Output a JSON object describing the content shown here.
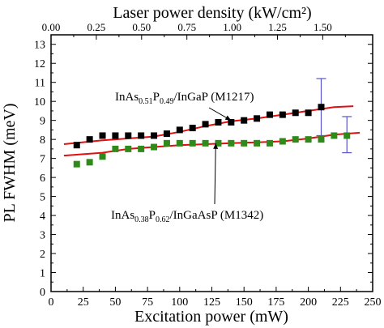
{
  "chart_data": {
    "type": "scatter",
    "xlabel": "Excitation power (mW)",
    "ylabel": "PL FWHM (meV)",
    "top_xlabel": "Laser power density (kW/cm²)",
    "xlim": [
      0,
      250
    ],
    "ylim": [
      0,
      13.5
    ],
    "x_ticks": [
      0,
      25,
      50,
      75,
      100,
      125,
      150,
      175,
      200,
      225,
      250
    ],
    "y_ticks": [
      0,
      1,
      2,
      3,
      4,
      5,
      6,
      7,
      8,
      9,
      10,
      11,
      12,
      13
    ],
    "top_ticks": [
      {
        "label": "0.00",
        "x": 0
      },
      {
        "label": "0.25",
        "x": 35.2
      },
      {
        "label": "0.50",
        "x": 70.4
      },
      {
        "label": "0.75",
        "x": 105.6
      },
      {
        "label": "1.00",
        "x": 140.8
      },
      {
        "label": "1.25",
        "x": 176.0
      },
      {
        "label": "1.50",
        "x": 211.2
      }
    ],
    "series": [
      {
        "name": "InAs0.51P0.49/InGaP (M1217)",
        "color": "#000000",
        "marker": "square",
        "x": [
          20,
          30,
          40,
          50,
          60,
          70,
          80,
          90,
          100,
          110,
          120,
          130,
          140,
          150,
          160,
          170,
          180,
          190,
          200,
          210
        ],
        "y": [
          7.7,
          8.0,
          8.2,
          8.2,
          8.2,
          8.2,
          8.2,
          8.3,
          8.5,
          8.6,
          8.8,
          8.9,
          8.9,
          9.0,
          9.1,
          9.3,
          9.3,
          9.4,
          9.4,
          9.7
        ],
        "errorbar": {
          "x": 210,
          "low": 8.2,
          "high": 11.2,
          "color": "#5555cc"
        }
      },
      {
        "name": "InAs0.38P0.62/InGaAsP (M1342)",
        "color": "#2e8b1a",
        "marker": "square",
        "x": [
          20,
          30,
          40,
          50,
          60,
          70,
          80,
          90,
          100,
          110,
          120,
          130,
          140,
          150,
          160,
          170,
          180,
          190,
          200,
          210,
          220,
          230
        ],
        "y": [
          6.7,
          6.8,
          7.1,
          7.5,
          7.5,
          7.5,
          7.6,
          7.8,
          7.8,
          7.8,
          7.8,
          7.8,
          7.8,
          7.8,
          7.8,
          7.8,
          7.9,
          8.0,
          8.0,
          8.0,
          8.2,
          8.2
        ],
        "errorbar": {
          "x": 230,
          "low": 7.3,
          "high": 9.2,
          "color": "#5555cc"
        }
      }
    ],
    "fits": [
      {
        "color": "#e01010",
        "x": [
          10,
          40,
          80,
          100,
          120,
          140,
          160,
          180,
          200,
          220,
          235
        ],
        "y": [
          7.75,
          7.95,
          8.15,
          8.4,
          8.7,
          8.95,
          9.1,
          9.3,
          9.5,
          9.7,
          9.75
        ]
      },
      {
        "color": "#e01010",
        "x": [
          10,
          40,
          60,
          80,
          100,
          120,
          140,
          160,
          180,
          200,
          220,
          240
        ],
        "y": [
          7.15,
          7.3,
          7.5,
          7.6,
          7.7,
          7.75,
          7.8,
          7.85,
          7.9,
          8.05,
          8.25,
          8.35
        ]
      }
    ],
    "annotations": [
      {
        "main": "InAs",
        "sub1": "0.51",
        "mid": "P",
        "sub2": "0.49",
        "rest": "/InGaP (M1217)",
        "arrow_to": [
          140,
          9.0
        ]
      },
      {
        "main": "InAs",
        "sub1": "0.38",
        "mid": "P",
        "sub2": "0.62",
        "rest": "/InGaAsP (M1342)",
        "arrow_to": [
          128,
          7.8
        ]
      }
    ],
    "grid": false,
    "legend": "none"
  }
}
